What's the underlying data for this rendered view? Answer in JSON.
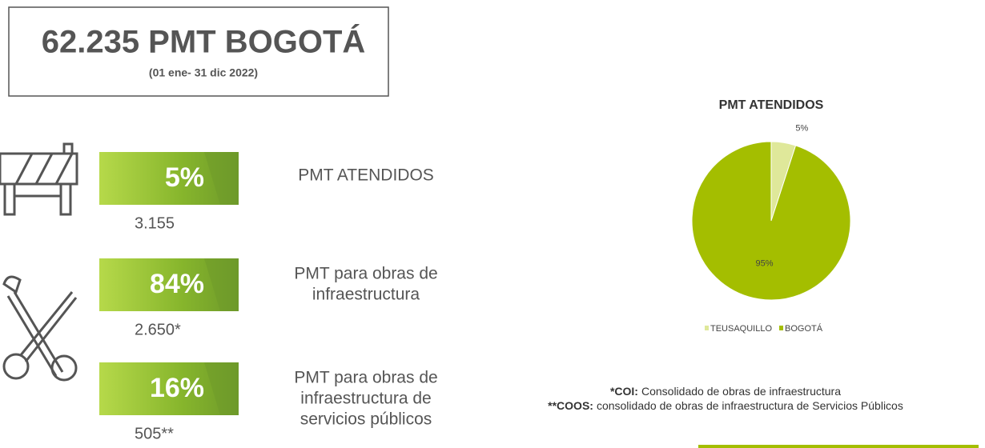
{
  "header": {
    "title": "62.235 PMT BOGOTÁ",
    "subtitle": "(01 ene- 31 dic 2022)"
  },
  "stats": [
    {
      "percent": "5%",
      "lines": [
        "PMT ATENDIDOS"
      ],
      "count": "3.155"
    },
    {
      "percent": "84%",
      "lines": [
        "PMT para obras de",
        "infraestructura"
      ],
      "count": "2.650*"
    },
    {
      "percent": "16%",
      "lines": [
        "PMT para obras de",
        "infraestructura de",
        "servicios públicos"
      ],
      "count": "505**"
    }
  ],
  "chart_data": {
    "type": "pie",
    "title": "PMT ATENDIDOS",
    "categories": [
      "TEUSAQUILLO",
      "BOGOTÁ"
    ],
    "values": [
      5,
      95
    ],
    "value_labels": [
      "5%",
      "95%"
    ],
    "colors": [
      "#dfe89a",
      "#a4be00"
    ],
    "legend": "bottom"
  },
  "notes": [
    {
      "term": "*COI:",
      "text": "Consolidado de obras de infraestructura"
    },
    {
      "term": "**COOS:",
      "text": "consolidado de obras de infraestructura de Servicios Públicos"
    }
  ]
}
